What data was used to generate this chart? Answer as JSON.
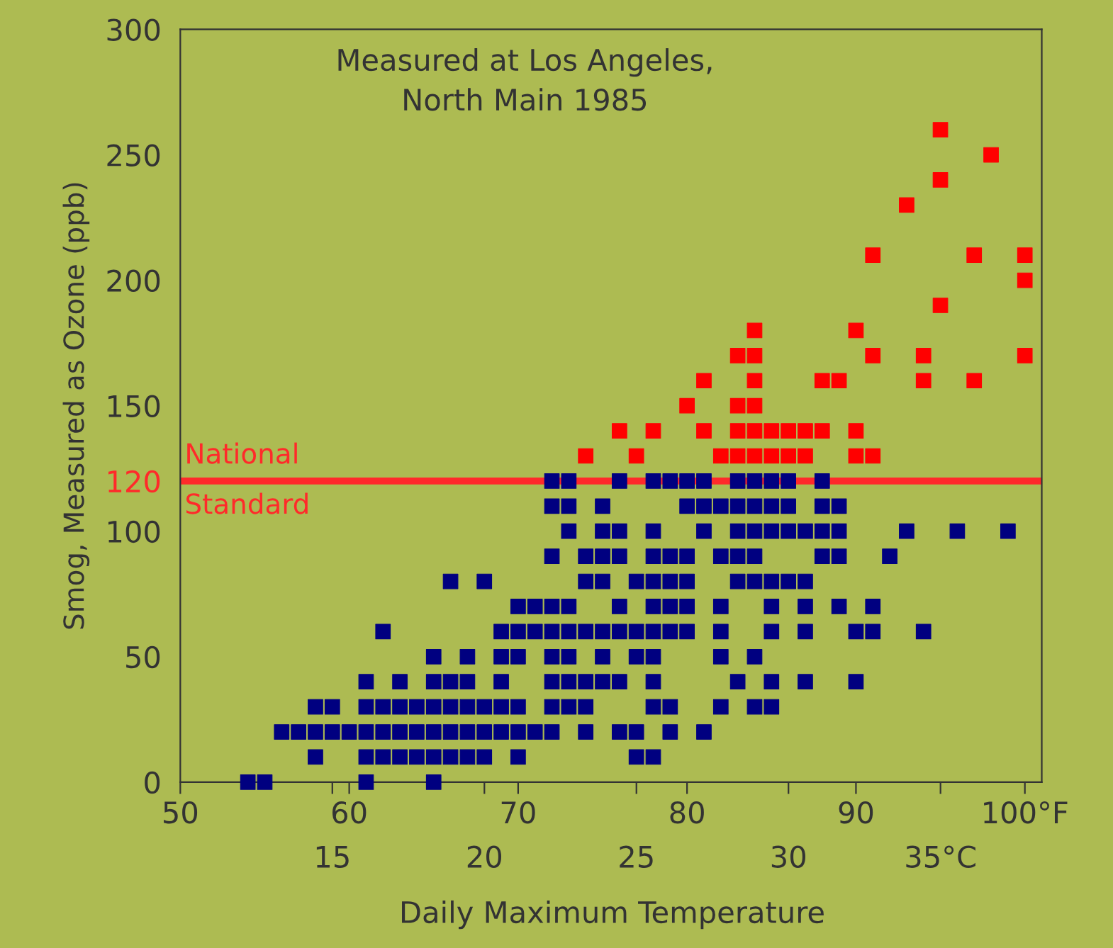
{
  "chart_data": {
    "type": "scatter",
    "title": "Measured at Los Angeles,\nNorth Main 1985",
    "xlabel": "Daily Maximum Temperature",
    "ylabel": "Smog, Measured as Ozone (ppb)",
    "marker": "square",
    "grid": false,
    "legend": false,
    "xlim": [
      50,
      101
    ],
    "xticks": [
      50,
      60,
      70,
      80,
      90,
      {
        "value": 100,
        "label": "100°F"
      }
    ],
    "x2lim": [
      10,
      38.33
    ],
    "x2ticks": [
      15,
      20,
      25,
      30,
      {
        "value": 35,
        "label": "35°C"
      }
    ],
    "ylim": [
      0,
      300
    ],
    "yticks": [
      0,
      50,
      100,
      120,
      150,
      200,
      250,
      300
    ],
    "ref_lines": [
      {
        "axis": "y",
        "value": 120,
        "label": "National Standard",
        "color": "#ff2a2a"
      }
    ],
    "series": [
      {
        "color": "#000080",
        "x": [
          54,
          55,
          61,
          65,
          58,
          61,
          62,
          63,
          64,
          65,
          66,
          67,
          68,
          70,
          77,
          78,
          56,
          57,
          58,
          59,
          60,
          61,
          62,
          63,
          64,
          65,
          66,
          67,
          68,
          69,
          70,
          71,
          72,
          74,
          76,
          77,
          79,
          81,
          58,
          59,
          61,
          62,
          63,
          64,
          65,
          66,
          67,
          68,
          69,
          70,
          72,
          73,
          74,
          78,
          79,
          82,
          84,
          85,
          61,
          63,
          65,
          66,
          67,
          69,
          72,
          73,
          74,
          75,
          76,
          78,
          83,
          85,
          87,
          90,
          65,
          67,
          69,
          70,
          72,
          73,
          75,
          77,
          78,
          82,
          84,
          62,
          69,
          70,
          71,
          72,
          73,
          74,
          75,
          76,
          77,
          78,
          79,
          80,
          82,
          85,
          87,
          90,
          91,
          94,
          70,
          71,
          72,
          73,
          76,
          78,
          79,
          80,
          82,
          85,
          87,
          89,
          91,
          66,
          68,
          74,
          75,
          77,
          78,
          79,
          80,
          83,
          84,
          85,
          86,
          87,
          72,
          74,
          75,
          76,
          78,
          79,
          80,
          82,
          83,
          84,
          88,
          89,
          92,
          73,
          75,
          76,
          78,
          81,
          83,
          84,
          85,
          86,
          87,
          88,
          89,
          93,
          96,
          99,
          72,
          73,
          75,
          80,
          81,
          82,
          83,
          84,
          85,
          86,
          88,
          89,
          72,
          73,
          76,
          78,
          79,
          80,
          81,
          83,
          84,
          85,
          86,
          88
        ],
        "values": [
          0,
          0,
          0,
          0,
          10,
          10,
          10,
          10,
          10,
          10,
          10,
          10,
          10,
          10,
          10,
          10,
          20,
          20,
          20,
          20,
          20,
          20,
          20,
          20,
          20,
          20,
          20,
          20,
          20,
          20,
          20,
          20,
          20,
          20,
          20,
          20,
          20,
          20,
          30,
          30,
          30,
          30,
          30,
          30,
          30,
          30,
          30,
          30,
          30,
          30,
          30,
          30,
          30,
          30,
          30,
          30,
          30,
          30,
          40,
          40,
          40,
          40,
          40,
          40,
          40,
          40,
          40,
          40,
          40,
          40,
          40,
          40,
          40,
          40,
          50,
          50,
          50,
          50,
          50,
          50,
          50,
          50,
          50,
          50,
          50,
          60,
          60,
          60,
          60,
          60,
          60,
          60,
          60,
          60,
          60,
          60,
          60,
          60,
          60,
          60,
          60,
          60,
          60,
          60,
          70,
          70,
          70,
          70,
          70,
          70,
          70,
          70,
          70,
          70,
          70,
          70,
          70,
          80,
          80,
          80,
          80,
          80,
          80,
          80,
          80,
          80,
          80,
          80,
          80,
          80,
          90,
          90,
          90,
          90,
          90,
          90,
          90,
          90,
          90,
          90,
          90,
          90,
          90,
          100,
          100,
          100,
          100,
          100,
          100,
          100,
          100,
          100,
          100,
          100,
          100,
          100,
          100,
          100,
          110,
          110,
          110,
          110,
          110,
          110,
          110,
          110,
          110,
          110,
          110,
          110,
          120,
          120,
          120,
          120,
          120,
          120,
          120,
          120,
          120,
          120,
          120,
          120
        ]
      },
      {
        "color": "#ff0000",
        "x": [
          74,
          77,
          82,
          83,
          84,
          85,
          86,
          87,
          90,
          91,
          76,
          78,
          81,
          83,
          84,
          85,
          86,
          87,
          88,
          90,
          80,
          83,
          84,
          81,
          84,
          88,
          89,
          94,
          97,
          83,
          84,
          91,
          94,
          100,
          84,
          90,
          95,
          100,
          91,
          97,
          100,
          93,
          95,
          98,
          95
        ],
        "values": [
          130,
          130,
          130,
          130,
          130,
          130,
          130,
          130,
          130,
          130,
          140,
          140,
          140,
          140,
          140,
          140,
          140,
          140,
          140,
          140,
          150,
          150,
          150,
          160,
          160,
          160,
          160,
          160,
          160,
          170,
          170,
          170,
          170,
          170,
          180,
          180,
          190,
          200,
          210,
          210,
          210,
          230,
          240,
          250,
          260
        ]
      }
    ]
  }
}
